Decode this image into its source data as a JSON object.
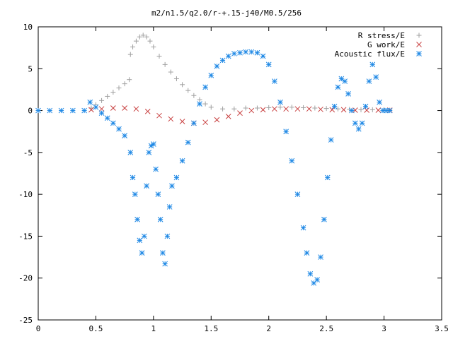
{
  "chart_data": {
    "type": "scatter",
    "title": "m2/n1.5/q2.0/r-+.15-j40/M0.5/256",
    "xlabel": "",
    "ylabel": "",
    "xlim": [
      0,
      3.5
    ],
    "ylim": [
      -25,
      10
    ],
    "xticks": [
      0,
      0.5,
      1,
      1.5,
      2,
      2.5,
      3,
      3.5
    ],
    "xtick_labels": [
      "0",
      "0.5",
      "1",
      "1.5",
      "2",
      "2.5",
      "3",
      "3.5"
    ],
    "yticks": [
      -25,
      -20,
      -15,
      -10,
      -5,
      0,
      5,
      10
    ],
    "ytick_labels": [
      "-25",
      "-20",
      "-15",
      "-10",
      "-5",
      "0",
      "5",
      "10"
    ],
    "grid": false,
    "legend_position": "top-right",
    "series": [
      {
        "name": "R stress/E",
        "marker": "plus",
        "color": "#a0a0a0",
        "x": [
          0.46,
          0.5,
          0.55,
          0.6,
          0.65,
          0.7,
          0.75,
          0.79,
          0.8,
          0.82,
          0.85,
          0.88,
          0.91,
          0.94,
          0.97,
          1.0,
          1.05,
          1.1,
          1.15,
          1.2,
          1.25,
          1.3,
          1.35,
          1.4,
          1.45,
          1.5,
          1.6,
          1.7,
          1.8,
          1.9,
          2.0,
          2.1,
          2.2,
          2.3,
          2.4,
          2.5,
          2.6,
          2.7,
          2.8,
          2.9,
          3.0,
          3.05
        ],
        "y": [
          0.3,
          0.7,
          1.2,
          1.7,
          2.2,
          2.7,
          3.2,
          3.7,
          6.7,
          7.6,
          8.3,
          8.8,
          9.0,
          8.8,
          8.3,
          7.6,
          6.5,
          5.5,
          4.6,
          3.8,
          3.1,
          2.4,
          1.8,
          1.3,
          0.8,
          0.4,
          0.2,
          0.2,
          0.3,
          0.3,
          0.35,
          0.4,
          0.4,
          0.35,
          0.3,
          0.25,
          0.2,
          0.15,
          0.1,
          0.1,
          0.1,
          0.05
        ]
      },
      {
        "name": "G work/E",
        "marker": "cross",
        "color": "#c84040",
        "x": [
          0.46,
          0.55,
          0.65,
          0.75,
          0.85,
          0.95,
          1.05,
          1.15,
          1.25,
          1.35,
          1.45,
          1.55,
          1.65,
          1.75,
          1.85,
          1.95,
          2.05,
          2.15,
          2.25,
          2.35,
          2.45,
          2.55,
          2.65,
          2.75,
          2.85,
          2.95,
          3.05
        ],
        "y": [
          0.1,
          0.2,
          0.3,
          0.3,
          0.2,
          -0.1,
          -0.6,
          -1.0,
          -1.3,
          -1.5,
          -1.4,
          -1.1,
          -0.7,
          -0.3,
          0.0,
          0.1,
          0.2,
          0.2,
          0.2,
          0.2,
          0.15,
          0.1,
          0.1,
          0.05,
          0.05,
          0.05,
          0.05
        ]
      },
      {
        "name": "Acoustic flux/E",
        "marker": "star",
        "color": "#1e88e5",
        "x": [
          0.0,
          0.1,
          0.2,
          0.3,
          0.4,
          0.45,
          0.5,
          0.55,
          0.6,
          0.65,
          0.7,
          0.75,
          0.8,
          0.82,
          0.84,
          0.86,
          0.88,
          0.9,
          0.92,
          0.94,
          0.96,
          0.98,
          1.0,
          1.02,
          1.04,
          1.06,
          1.08,
          1.1,
          1.12,
          1.14,
          1.16,
          1.2,
          1.25,
          1.3,
          1.35,
          1.4,
          1.45,
          1.5,
          1.55,
          1.6,
          1.65,
          1.7,
          1.75,
          1.8,
          1.85,
          1.9,
          1.95,
          2.0,
          2.05,
          2.1,
          2.15,
          2.2,
          2.25,
          2.3,
          2.33,
          2.36,
          2.39,
          2.42,
          2.45,
          2.48,
          2.51,
          2.54,
          2.57,
          2.6,
          2.63,
          2.66,
          2.69,
          2.72,
          2.75,
          2.78,
          2.81,
          2.84,
          2.87,
          2.9,
          2.93,
          2.96,
          2.99,
          3.02,
          3.05
        ],
        "y": [
          0.0,
          0.0,
          0.0,
          0.0,
          0.0,
          1.0,
          0.4,
          -0.3,
          -0.9,
          -1.5,
          -2.2,
          -3.0,
          -5.0,
          -8.0,
          -10.0,
          -13.0,
          -15.5,
          -17.0,
          -15.0,
          -9.0,
          -5.0,
          -4.2,
          -4.0,
          -7.0,
          -10.0,
          -13.0,
          -17.0,
          -18.3,
          -15.0,
          -11.5,
          -9.0,
          -8.0,
          -6.0,
          -3.8,
          -1.5,
          0.8,
          2.8,
          4.2,
          5.3,
          6.0,
          6.5,
          6.8,
          6.9,
          7.0,
          7.0,
          6.9,
          6.5,
          5.5,
          3.5,
          1.0,
          -2.5,
          -6.0,
          -10.0,
          -14.0,
          -17.0,
          -19.5,
          -20.6,
          -20.2,
          -17.5,
          -13.0,
          -8.0,
          -3.5,
          0.5,
          2.8,
          3.8,
          3.5,
          2.0,
          0.0,
          -1.5,
          -2.2,
          -1.5,
          0.5,
          3.5,
          5.5,
          4.0,
          1.0,
          0.0,
          0.0,
          0.0
        ]
      }
    ]
  }
}
